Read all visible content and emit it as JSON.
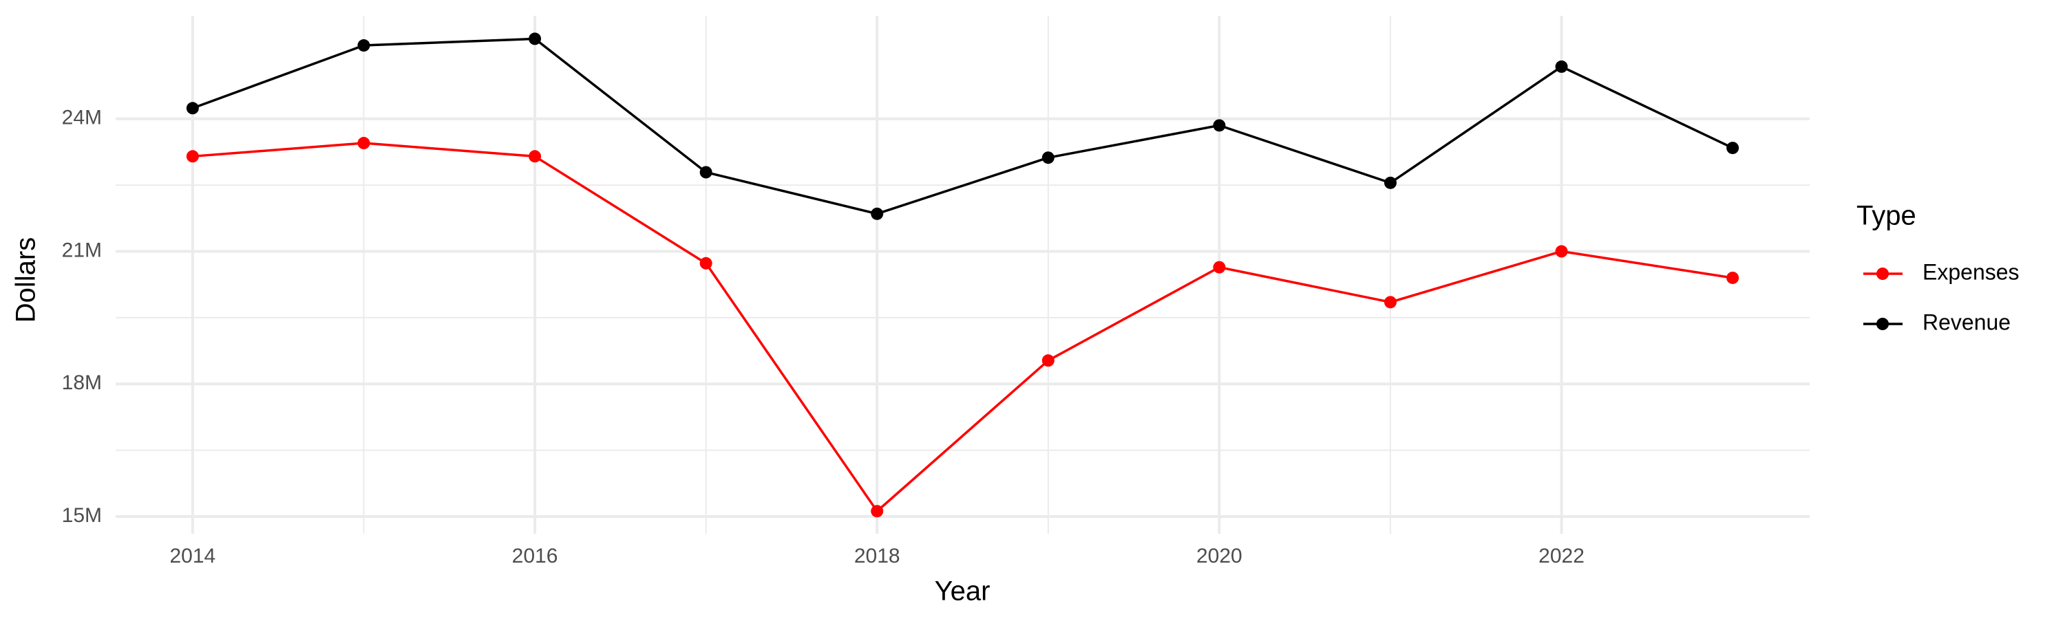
{
  "chart_data": {
    "type": "line",
    "x_label": "Year",
    "y_label": "Dollars",
    "legend_title": "Type",
    "x": [
      2014,
      2015,
      2016,
      2017,
      2018,
      2019,
      2020,
      2021,
      2022,
      2023
    ],
    "series": [
      {
        "name": "Expenses",
        "color": "#ff0000",
        "values": [
          23150000,
          23450000,
          23150000,
          20730000,
          15120000,
          18530000,
          20640000,
          19850000,
          21000000,
          20400000
        ]
      },
      {
        "name": "Revenue",
        "color": "#000000",
        "values": [
          24240000,
          25660000,
          25810000,
          22790000,
          21850000,
          23120000,
          23850000,
          22550000,
          25180000,
          23340000
        ]
      }
    ],
    "xlim": [
      2013.55,
      2023.45
    ],
    "xticks": [
      2014,
      2016,
      2018,
      2020,
      2022
    ],
    "ylim": [
      14610000,
      26330000
    ],
    "yticks": [
      {
        "value": 15000000,
        "label": "15M"
      },
      {
        "value": 18000000,
        "label": "18M"
      },
      {
        "value": 21000000,
        "label": "21M"
      },
      {
        "value": 24000000,
        "label": "24M"
      }
    ],
    "grid": true,
    "legend": "right"
  }
}
